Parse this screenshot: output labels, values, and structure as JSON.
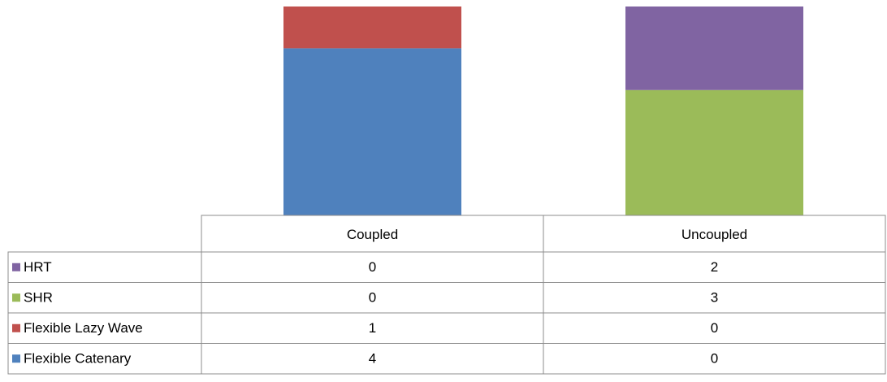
{
  "chart_data": {
    "type": "stacked_bar",
    "categories": [
      "Coupled",
      "Uncoupled"
    ],
    "series": [
      {
        "name": "Flexible Catenary",
        "color": "#4f81bd",
        "values": [
          4,
          0
        ]
      },
      {
        "name": "Flexible Lazy Wave",
        "color": "#c0504d",
        "values": [
          1,
          0
        ]
      },
      {
        "name": "SHR",
        "color": "#9bbb59",
        "values": [
          0,
          3
        ]
      },
      {
        "name": "HRT",
        "color": "#8064a2",
        "values": [
          0,
          2
        ]
      }
    ],
    "data_table": true
  }
}
